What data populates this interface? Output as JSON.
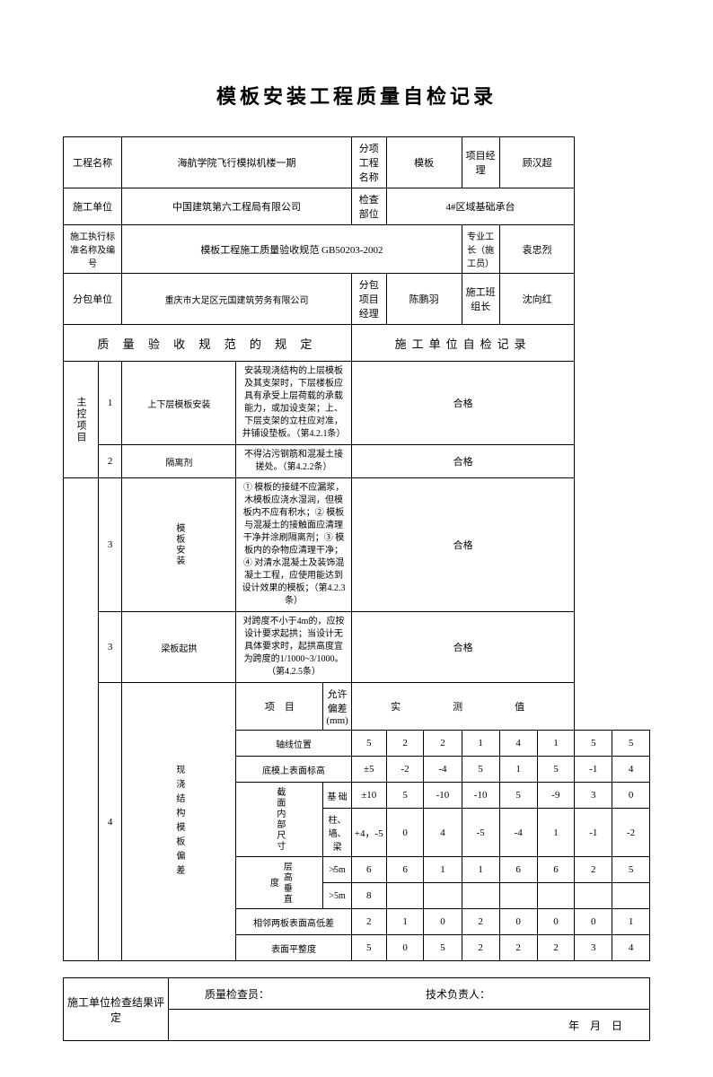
{
  "title": "模板安装工程质量自检记录",
  "header": {
    "projectNameLabel": "工程名称",
    "projectName": "海航学院飞行模拟机楼一期",
    "subProjectLabel": "分项工程名称",
    "subProject": "模板",
    "pmLabel": "项目经理",
    "pm": "顾汉超",
    "contractorLabel": "施工单位",
    "contractor": "中国建筑第六工程局有限公司",
    "inspectPartLabel": "检查部位",
    "inspectPart": "4#区域基础承台",
    "standardLabel": "施工执行标准名称及编号",
    "standard": "模板工程施工质量验收规范  GB50203-2002",
    "foremanLabel": "专业工长（施工员）",
    "foreman": "袁忠烈",
    "subcontractorLabel": "分包单位",
    "subcontractor": "重庆市大足区元国建筑劳务有限公司",
    "subPmLabel": "分包项目经理",
    "subPm": "陈鹏羽",
    "crewLeaderLabel": "施工班组长",
    "crewLeader": "沈向红"
  },
  "sectionLeft": "质 量 验 收 规 范 的 规 定",
  "sectionRight": "施工单位自检记录",
  "mainCtrlLabel": "主控项目",
  "rows": {
    "r1": {
      "no": "1",
      "name": "上下层模板安装",
      "spec": "安装现浇结构的上层模板及其支架时，下层楼板应具有承受上层荷载的承载能力，或加设支架；上、下层支架的立柱应对准，并铺设垫板。（第4.2.1条）",
      "result": "合格"
    },
    "r2": {
      "no": "2",
      "name": "隔离剂",
      "spec": "不得沾污钢筋和混凝土接搓处。（第4.2.2条）",
      "result": "合格"
    },
    "r3": {
      "no": "3",
      "name": "模板安装",
      "spec": "① 模板的接缝不应漏浆，木模板应浇水湿润，但模板内不应有积水；② 模板与混凝土的接触面应清理干净并涂刷隔离剂；③ 模板内的杂物应清理干净；④ 对清水混凝土及装饰混凝土工程，应使用能达到设计效果的模板；（第4.2.3条）",
      "result": "合格"
    },
    "r4": {
      "no": "3",
      "name": "梁板起拱",
      "spec": "对跨度不小于4m的，应按设计要求起拱；当设计无具体要求时，起拱高度宜为跨度的1/1000~3/1000。（第4.2.5条）",
      "result": "合格"
    },
    "r5": {
      "no": "4",
      "name": "现浇结构模板偏差"
    }
  },
  "meas": {
    "itemLabel": "项　目",
    "tolLabel": "允许偏差(mm)",
    "valueLabel": "实　　测　　值",
    "axis": {
      "name": "轴线位置",
      "tol": "5",
      "v": [
        "2",
        "2",
        "1",
        "4",
        "1",
        "5",
        "5"
      ]
    },
    "bottom": {
      "name": "底模上表面标高",
      "tol": "±5",
      "v": [
        "-2",
        "-4",
        "5",
        "1",
        "5",
        "-1",
        "4"
      ]
    },
    "sectionLabel": "截面内部尺寸",
    "base": {
      "name": "基 础",
      "tol": "±10",
      "v": [
        "5",
        "-10",
        "-10",
        "5",
        "-9",
        "3",
        "0"
      ]
    },
    "beam": {
      "name": "柱、墙、梁",
      "tol": "+4，-5",
      "v": [
        "0",
        "4",
        "-5",
        "-4",
        "1",
        "-1",
        "-2"
      ]
    },
    "heightLabel": "层高垂直度",
    "h1": {
      "name": "≯5m",
      "tol": "6",
      "v": [
        "6",
        "1",
        "1",
        "6",
        "6",
        "2",
        "5"
      ]
    },
    "h2": {
      "name": ">5m",
      "tol": "8",
      "v": [
        "",
        "",
        "",
        "",
        "",
        "",
        ""
      ]
    },
    "adj": {
      "name": "相邻两板表面高低差",
      "tol": "2",
      "v": [
        "1",
        "0",
        "2",
        "0",
        "0",
        "0",
        "1"
      ]
    },
    "flat": {
      "name": "表面平整度",
      "tol": "5",
      "v": [
        "0",
        "5",
        "2",
        "2",
        "2",
        "3",
        "4"
      ]
    }
  },
  "footer": {
    "evalLabel": "施工单位检查结果评定",
    "inspectorLabel": "质量检查员：",
    "techLabel": "技术负责人：",
    "date": "年　月　日"
  }
}
